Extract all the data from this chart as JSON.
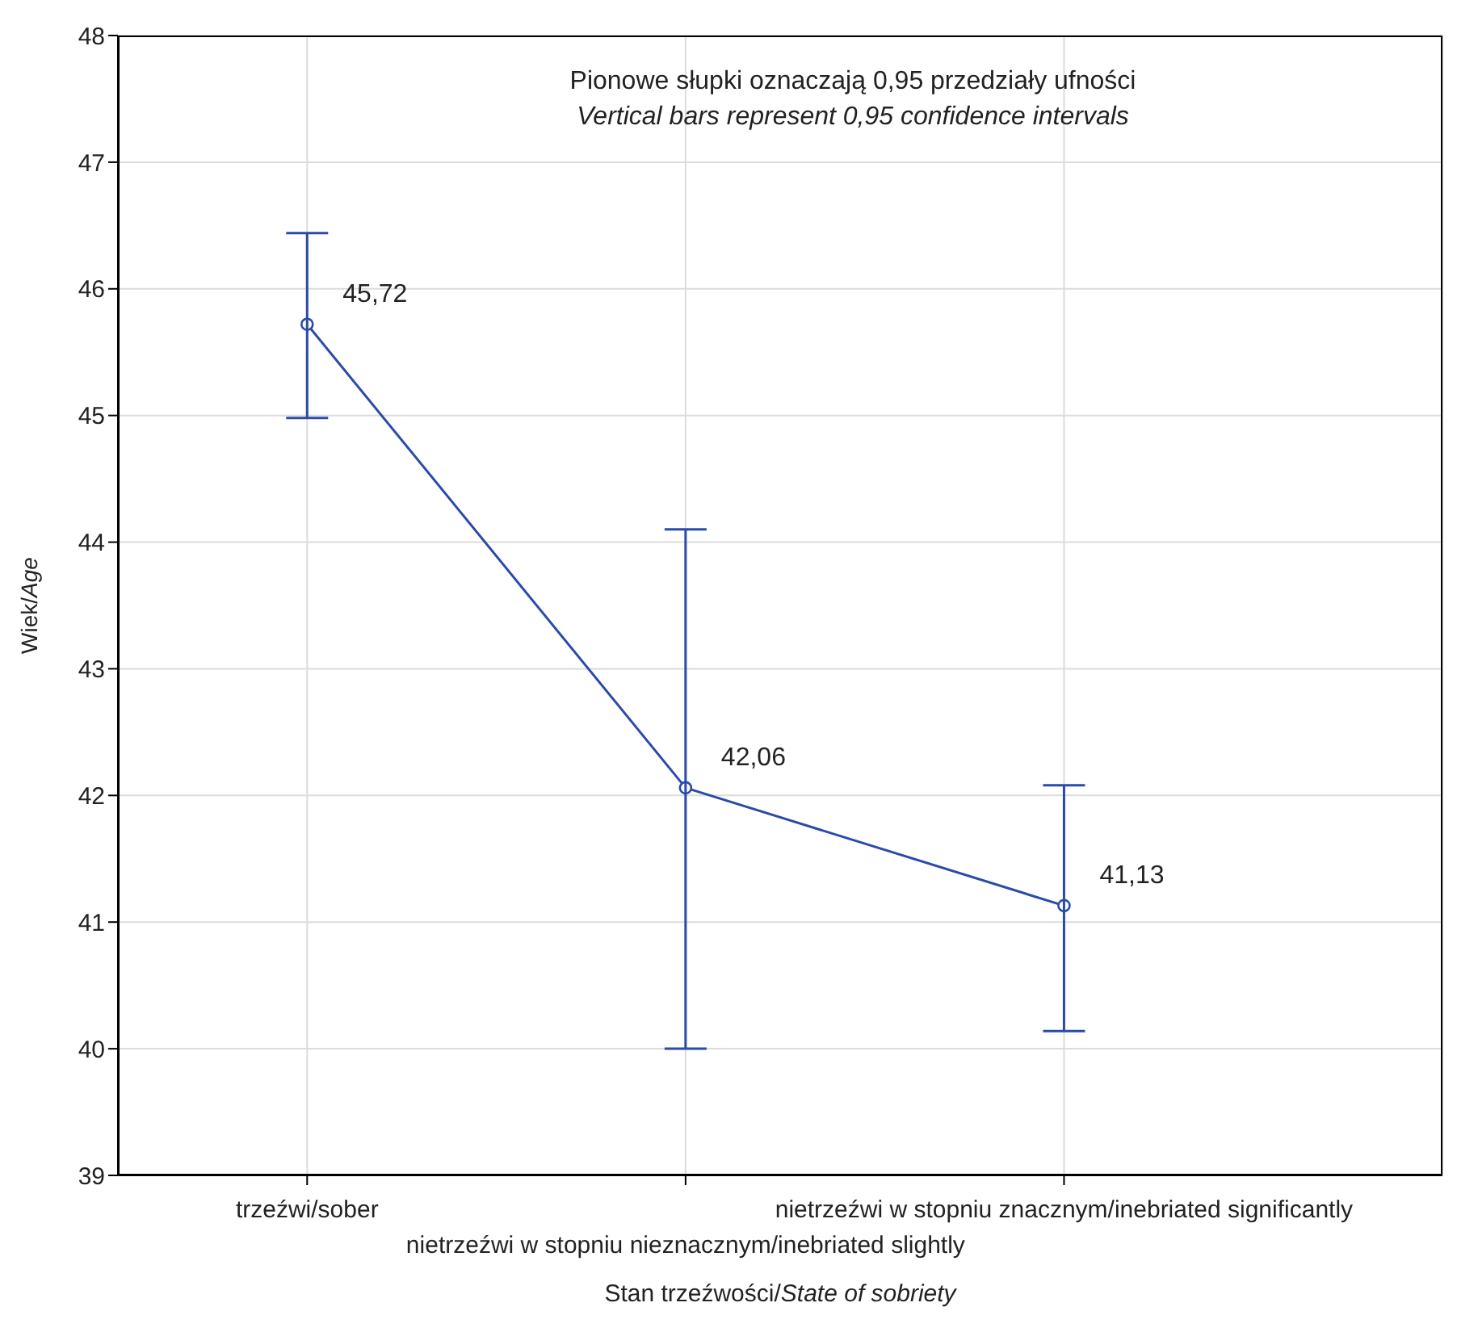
{
  "chart_data": {
    "type": "line",
    "xlabel": "Stan trzeźwości/State of sobriety",
    "ylabel": "Wiek/Age",
    "annotations": [
      "Pionowe słupki oznaczają 0,95 przedziały ufności",
      "Vertical bars represent 0,95 confidence intervals"
    ],
    "categories": [
      "trzeźwi/sober",
      "nietrzeźwi w stopniu nieznacznym/inebriated slightly",
      "nietrzeźwi w stopniu znacznym/inebriated significantly"
    ],
    "color": "#2b4ba8",
    "values": [
      45.72,
      42.06,
      41.13
    ],
    "value_labels": [
      "45,72",
      "42,06",
      "41,13"
    ],
    "errors": [
      [
        44.98,
        46.44
      ],
      [
        40.0,
        44.1
      ],
      [
        40.14,
        42.08
      ]
    ],
    "ylim": [
      39,
      48
    ],
    "yticks": [
      39,
      40,
      41,
      42,
      43,
      44,
      45,
      46,
      47,
      48
    ],
    "grid": true,
    "marker": "circle",
    "line_style": "solid"
  }
}
